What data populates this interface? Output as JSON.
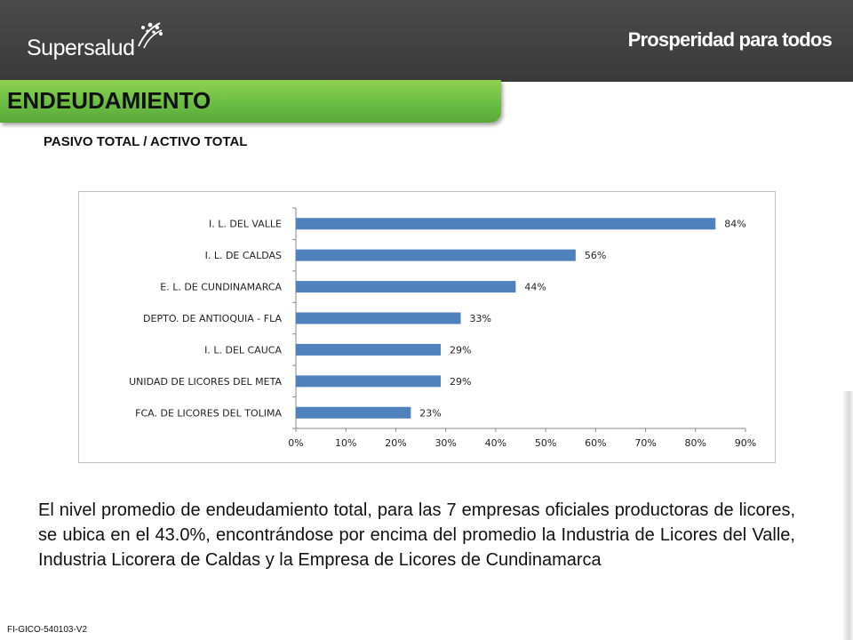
{
  "header": {
    "logo_text": "Supersalud",
    "slogan": "Prosperidad para todos"
  },
  "page": {
    "title": "ENDEUDAMIENTO",
    "subtitle": "PASIVO TOTAL / ACTIVO TOTAL",
    "paragraph": "El nivel promedio de endeudamiento total, para las 7 empresas oficiales productoras de licores, se ubica en el 43.0%, encontrándose por encima del promedio la Industria de Licores del Valle, Industria Licorera de Caldas y la Empresa de Licores de Cundinamarca",
    "footer_code": "FI-GICO-540103-V2"
  },
  "colors": {
    "header_bg": "#3f3f3f",
    "title_green": "#6cbd45",
    "bar": "#4f81bd"
  },
  "icons": {
    "logo_mark": "starburst-icon"
  },
  "chart_data": {
    "type": "bar",
    "orientation": "horizontal",
    "categories": [
      "I. L. DEL VALLE",
      "I. L. DE CALDAS",
      "E. L. DE CUNDINAMARCA",
      "DEPTO. DE ANTIOQUIA - FLA",
      "I. L. DEL CAUCA",
      "UNIDAD DE LICORES DEL META",
      "FCA. DE LICORES DEL TOLIMA"
    ],
    "values": [
      84,
      56,
      44,
      33,
      29,
      29,
      23
    ],
    "value_labels": [
      "84%",
      "56%",
      "44%",
      "33%",
      "29%",
      "29%",
      "23%"
    ],
    "xlim": [
      0,
      90
    ],
    "xticks": [
      "0%",
      "10%",
      "20%",
      "30%",
      "40%",
      "50%",
      "60%",
      "70%",
      "80%",
      "90%"
    ],
    "grid": false,
    "legend": "none"
  }
}
